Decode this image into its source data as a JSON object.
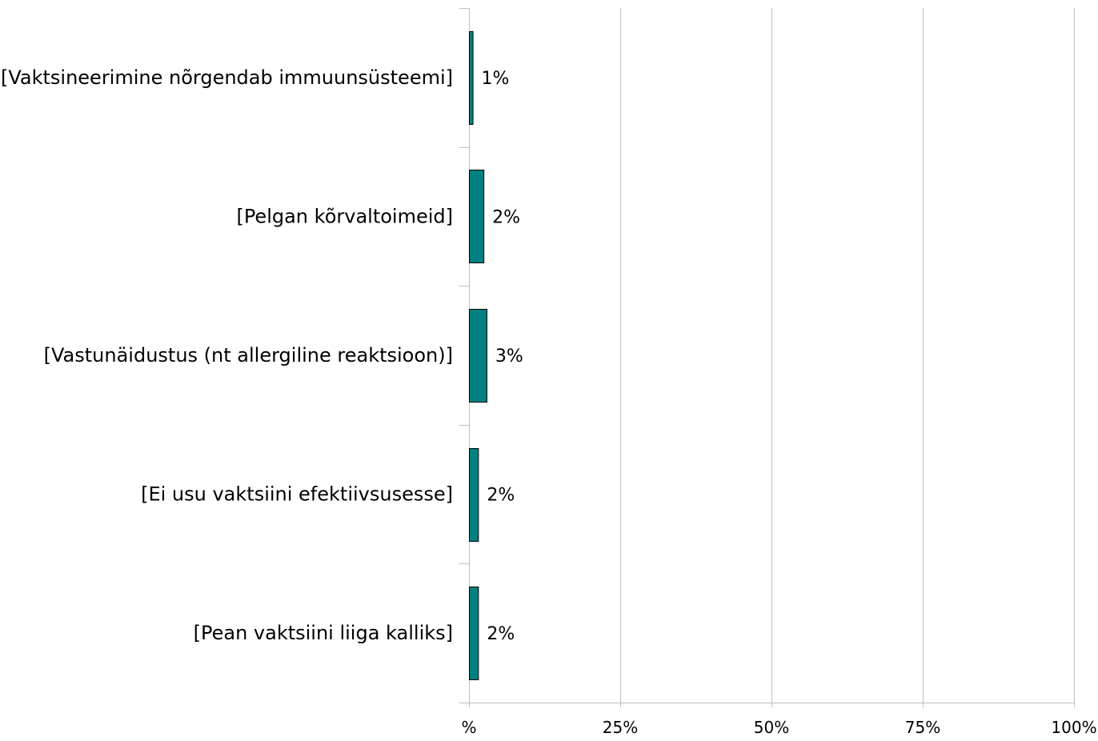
{
  "chart_data": {
    "type": "bar",
    "orientation": "horizontal",
    "title": "",
    "xlabel": "",
    "ylabel": "",
    "categories": [
      "[Vaktsineerimine nõrgendab immuunsüsteemi]",
      "[Pelgan kõrvaltoimeid]",
      "[Vastunäidustus (nt allergiline reaktsioon)]",
      "[Ei usu vaktsiini efektiivsusesse]",
      "[Pean vaktsiini liiga kalliks]"
    ],
    "values": [
      0.6,
      2.4,
      2.9,
      1.5,
      1.5
    ],
    "data_labels": [
      "1%",
      "2%",
      "3%",
      "2%",
      "2%"
    ],
    "xlim": [
      0,
      100
    ],
    "x_ticks": [
      0,
      25,
      50,
      75,
      100
    ],
    "x_tick_labels": [
      "%",
      "25%",
      "50%",
      "75%",
      "100%"
    ],
    "grid": "vertical",
    "legend": "none",
    "bar_color": "#008080",
    "bar_edge_color": "#000000",
    "grid_color": "#c0c0c0"
  }
}
